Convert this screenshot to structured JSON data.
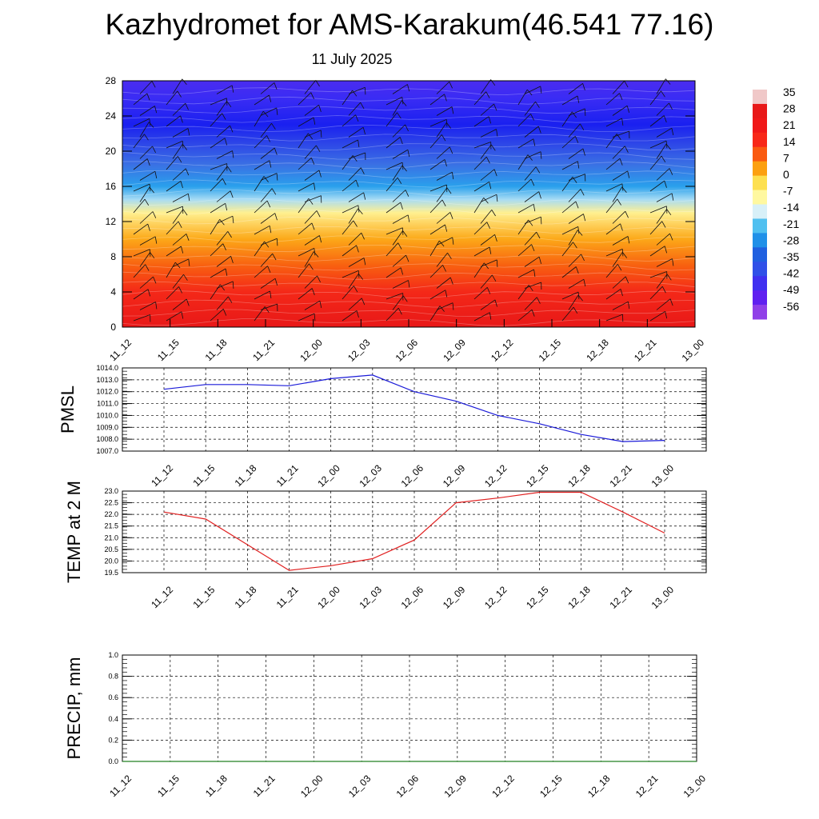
{
  "title": "Kazhydromet for AMS-Karakum(46.541 77.16)",
  "subtitle": "11 July 2025",
  "chart_data": [
    {
      "type": "heatmap",
      "description_of_fields": "temperature cross-section by height with wind barbs",
      "x_ticks": [
        "11_12",
        "11_15",
        "11_18",
        "11_21",
        "12_00",
        "12_03",
        "12_06",
        "12_09",
        "12_12",
        "12_15",
        "12_18",
        "12_21",
        "13_00"
      ],
      "y_ticks": [
        "0",
        "4",
        "8",
        "12",
        "16",
        "20",
        "24",
        "28"
      ],
      "ylim": [
        0,
        28
      ],
      "colorbar_labels": [
        "35",
        "28",
        "21",
        "14",
        "7",
        "0",
        "-7",
        "-14",
        "-21",
        "-28",
        "-35",
        "-42",
        "-49",
        "-56"
      ],
      "colorbar_colors": [
        "#f0c8c8",
        "#e81818",
        "#f01818",
        "#f82818",
        "#fa5a10",
        "#fca010",
        "#fde050",
        "#fff8a0",
        "#d8f0f8",
        "#50c0f0",
        "#2090e8",
        "#2060e0",
        "#3050e8",
        "#4030f0",
        "#6020f0",
        "#9040e8"
      ],
      "profile_colors_by_height": [
        {
          "h": 0,
          "color": "#e81818"
        },
        {
          "h": 4,
          "color": "#f42818"
        },
        {
          "h": 7,
          "color": "#f86010"
        },
        {
          "h": 10,
          "color": "#fca818"
        },
        {
          "h": 13,
          "color": "#fff090"
        },
        {
          "h": 14.5,
          "color": "#a8dcf4"
        },
        {
          "h": 16,
          "color": "#2aa0ec"
        },
        {
          "h": 18.5,
          "color": "#3a70e4"
        },
        {
          "h": 21,
          "color": "#2c44e8"
        },
        {
          "h": 23,
          "color": "#1a20f0"
        },
        {
          "h": 26,
          "color": "#3a2cf4"
        },
        {
          "h": 28,
          "color": "#4a2cf0"
        }
      ]
    },
    {
      "type": "line",
      "ylabel": "PMSL",
      "x": [
        "11_12",
        "11_15",
        "11_18",
        "11_21",
        "12_00",
        "12_03",
        "12_06",
        "12_09",
        "12_12",
        "12_15",
        "12_18",
        "12_21",
        "13_00"
      ],
      "y_ticks": [
        "1014.0",
        "1013.0",
        "1012.0",
        "1011.0",
        "1010.0",
        "1009.0",
        "1008.0",
        "1007.0"
      ],
      "ylim": [
        1007.0,
        1014.0
      ],
      "series": [
        {
          "values": [
            1012.2,
            1012.6,
            1012.6,
            1012.5,
            1013.1,
            1013.4,
            1012.0,
            1011.2,
            1010.0,
            1009.3,
            1008.4,
            1007.8,
            1007.9
          ],
          "color": "#1a1ad8"
        }
      ]
    },
    {
      "type": "line",
      "ylabel": "TEMP at 2 M",
      "x": [
        "11_12",
        "11_15",
        "11_18",
        "11_21",
        "12_00",
        "12_03",
        "12_06",
        "12_09",
        "12_12",
        "12_15",
        "12_18",
        "12_21",
        "13_00"
      ],
      "y_ticks": [
        "23.0",
        "22.5",
        "22.0",
        "21.5",
        "21.0",
        "20.5",
        "20.0",
        "19.5"
      ],
      "ylim": [
        19.5,
        23.0
      ],
      "series": [
        {
          "values": [
            22.1,
            21.8,
            20.7,
            19.6,
            19.8,
            20.1,
            20.9,
            22.5,
            22.7,
            22.95,
            22.95,
            22.1,
            21.2
          ],
          "color": "#e02020"
        }
      ]
    },
    {
      "type": "line",
      "ylabel": "PRECIP, mm",
      "x": [
        "11_12",
        "11_15",
        "11_18",
        "11_21",
        "12_00",
        "12_03",
        "12_06",
        "12_09",
        "12_12",
        "12_15",
        "12_18",
        "12_21",
        "13_00"
      ],
      "y_ticks": [
        "1.0",
        "0.8",
        "0.6",
        "0.4",
        "0.2",
        "0.0"
      ],
      "ylim": [
        0.0,
        1.0
      ],
      "series": [
        {
          "values": [
            0,
            0,
            0,
            0,
            0,
            0,
            0,
            0,
            0,
            0,
            0,
            0,
            0
          ],
          "color": "#208020"
        }
      ]
    }
  ]
}
